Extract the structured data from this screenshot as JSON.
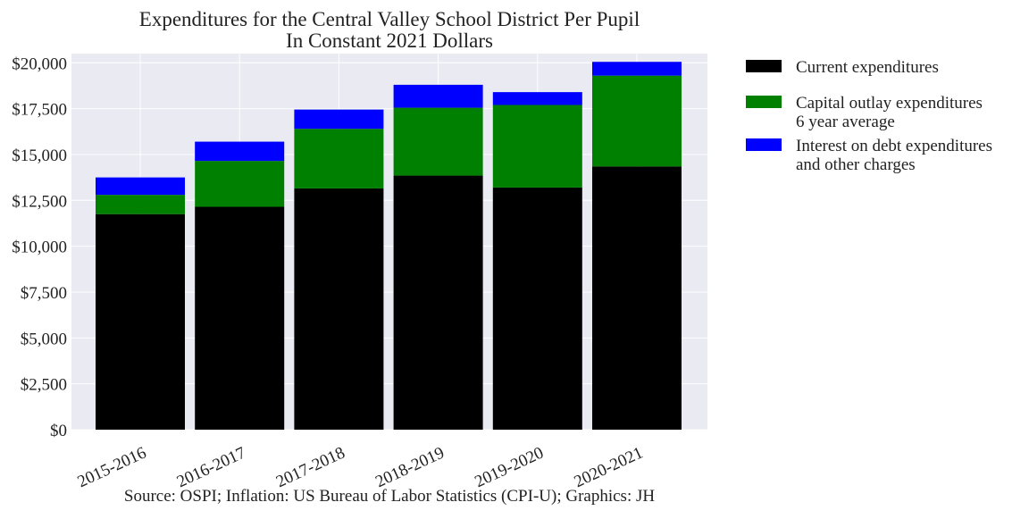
{
  "chart_data": {
    "type": "bar",
    "stacked": true,
    "title": "Expenditures for the Central Valley School District Per Pupil",
    "subtitle": "In Constant 2021 Dollars",
    "xlabel": "",
    "ylabel": "",
    "ylim": [
      0,
      20500
    ],
    "yticks": [
      0,
      2500,
      5000,
      7500,
      10000,
      12500,
      15000,
      17500,
      20000
    ],
    "ytick_labels": [
      "$0",
      "$2,500",
      "$5,000",
      "$7,500",
      "$10,000",
      "$12,500",
      "$15,000",
      "$17,500",
      "$20,000"
    ],
    "categories": [
      "2015-2016",
      "2016-2017",
      "2017-2018",
      "2018-2019",
      "2019-2020",
      "2020-2021"
    ],
    "series": [
      {
        "name": "Current expenditures",
        "color": "#000000",
        "values": [
          11750,
          12150,
          13150,
          13850,
          13200,
          14350
        ]
      },
      {
        "name": "Capital outlay expenditures\n6 year average",
        "color": "#008000",
        "values": [
          1050,
          2500,
          3250,
          3700,
          4500,
          4950
        ]
      },
      {
        "name": "Interest on debt expenditures\nand other charges",
        "color": "#0000ff",
        "values": [
          950,
          1050,
          1050,
          1250,
          700,
          750
        ]
      }
    ],
    "grid": true,
    "legend_position": "outside-right",
    "source_note": "Source: OSPI; Inflation: US Bureau of Labor Statistics (CPI-U); Graphics: JH"
  }
}
